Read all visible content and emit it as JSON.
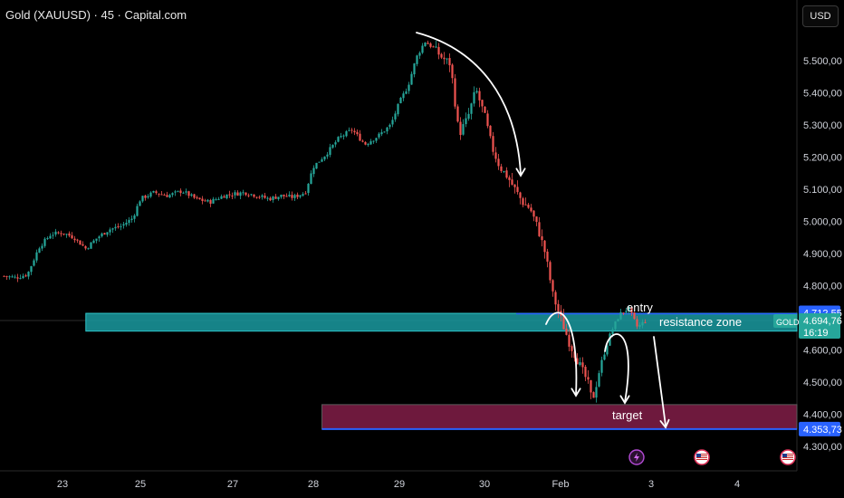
{
  "header": {
    "title": "Gold (XAUUSD) · 45 · Capital.com",
    "currency_label": "USD"
  },
  "colors": {
    "background": "#000000",
    "up_candle": "#26a69a",
    "down_candle": "#ef5350",
    "resistance_zone": "#1a9aa0",
    "target_zone": "#7a1c44",
    "target_line": "#2962ff",
    "entry_tag": "#2962ff",
    "last_price_tag": "#26a69a",
    "axis_text": "#d1d4dc",
    "annotation": "#ffffff"
  },
  "chart_data": {
    "type": "candlestick",
    "symbol": "Gold (XAUUSD)",
    "interval": "45",
    "y_axis": {
      "range": [
        4220,
        5650
      ],
      "ticks": [
        "5.500,00",
        "5.400,00",
        "5.300,00",
        "5.200,00",
        "5.100,00",
        "5.000,00",
        "4.900,00",
        "4.800,00",
        "4.600,00",
        "4.500,00",
        "4.400,00",
        "4.300,00"
      ],
      "tick_values": [
        5500,
        5400,
        5300,
        5200,
        5100,
        5000,
        4900,
        4800,
        4600,
        4500,
        4400,
        4300
      ]
    },
    "x_axis": {
      "labels": [
        "23",
        "25",
        "27",
        "28",
        "29",
        "30",
        "Feb",
        "3",
        "4"
      ],
      "label_positions_days": [
        0,
        1.0,
        2.0,
        3.0,
        4.0,
        5.0,
        6.0,
        7.0,
        8.0
      ]
    },
    "price_path": [
      [
        -0.75,
        4830
      ],
      [
        -0.6,
        4825
      ],
      [
        -0.45,
        4835
      ],
      [
        -0.3,
        4920
      ],
      [
        -0.15,
        4960
      ],
      [
        0.0,
        4965
      ],
      [
        0.15,
        4950
      ],
      [
        0.3,
        4915
      ],
      [
        0.45,
        4950
      ],
      [
        0.6,
        4975
      ],
      [
        0.75,
        4985
      ],
      [
        0.9,
        5010
      ],
      [
        1.0,
        5070
      ],
      [
        1.15,
        5090
      ],
      [
        1.3,
        5080
      ],
      [
        1.45,
        5095
      ],
      [
        1.6,
        5070
      ],
      [
        1.75,
        5060
      ],
      [
        1.9,
        5080
      ],
      [
        2.0,
        5085
      ],
      [
        2.15,
        5090
      ],
      [
        2.3,
        5080
      ],
      [
        2.45,
        5070
      ],
      [
        2.6,
        5080
      ],
      [
        2.75,
        5075
      ],
      [
        2.9,
        5090
      ],
      [
        3.0,
        5170
      ],
      [
        3.15,
        5210
      ],
      [
        3.3,
        5260
      ],
      [
        3.45,
        5285
      ],
      [
        3.6,
        5240
      ],
      [
        3.75,
        5265
      ],
      [
        3.9,
        5300
      ],
      [
        4.0,
        5370
      ],
      [
        4.1,
        5420
      ],
      [
        4.2,
        5510
      ],
      [
        4.3,
        5560
      ],
      [
        4.4,
        5540
      ],
      [
        4.5,
        5510
      ],
      [
        4.6,
        5490
      ],
      [
        4.7,
        5270
      ],
      [
        4.8,
        5320
      ],
      [
        4.9,
        5410
      ],
      [
        5.0,
        5330
      ],
      [
        5.1,
        5230
      ],
      [
        5.2,
        5170
      ],
      [
        5.3,
        5140
      ],
      [
        5.4,
        5100
      ],
      [
        5.5,
        5060
      ],
      [
        5.6,
        5040
      ],
      [
        5.7,
        4980
      ],
      [
        5.8,
        4900
      ],
      [
        5.9,
        4770
      ],
      [
        6.0,
        4700
      ],
      [
        6.1,
        4620
      ],
      [
        6.2,
        4560
      ],
      [
        6.3,
        4500
      ],
      [
        6.35,
        4440
      ],
      [
        6.45,
        4560
      ],
      [
        6.55,
        4650
      ],
      [
        6.65,
        4710
      ],
      [
        6.75,
        4730
      ],
      [
        6.85,
        4670
      ],
      [
        6.95,
        4694.76
      ]
    ],
    "last_price": 4694.76,
    "last_price_label": "4.694,76",
    "last_price_timer": "16:19",
    "symbol_tag": "GOLD",
    "entry_price": 4712.55,
    "entry_price_label": "4.712,55",
    "target_price": 4353.73,
    "target_price_label": "4.353,73",
    "zones": [
      {
        "name": "resistance zone",
        "from_price": 4660,
        "to_price": 4712.55,
        "start_day": 0.3,
        "label": "resistance zone"
      },
      {
        "name": "target",
        "from_price": 4353.73,
        "to_price": 4430,
        "start_day": 3.1,
        "label": "target"
      }
    ],
    "annotations": [
      {
        "text": "entry"
      }
    ],
    "event_markers": [
      {
        "icon": "lightning-icon"
      },
      {
        "icon": "us-flag-icon"
      },
      {
        "icon": "us-flag-icon"
      }
    ]
  }
}
